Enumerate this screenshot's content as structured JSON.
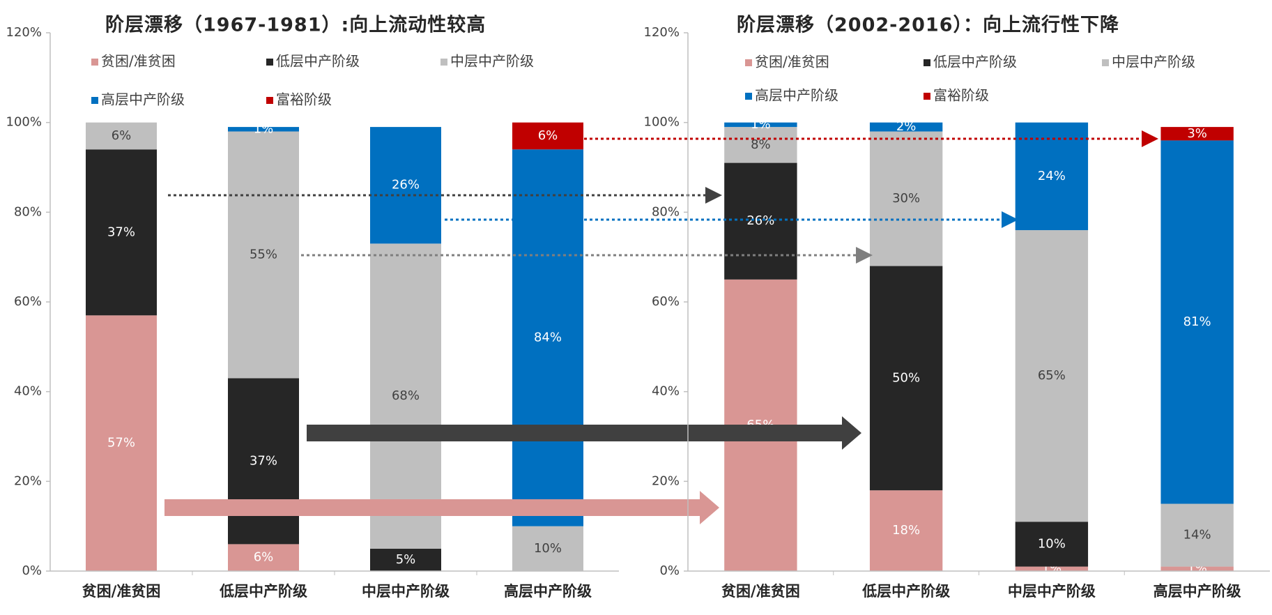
{
  "chart_data": [
    {
      "type": "stacked_bar",
      "title": "阶层漂移（1967-1981）:向上流动性较高",
      "categories": [
        "贫困/准贫困",
        "低层中产阶级",
        "中层中产阶级",
        "高层中产阶级"
      ],
      "series": [
        {
          "name": "贫困/准贫困",
          "color": "#d99694",
          "values": [
            57,
            6,
            null,
            null
          ],
          "value_labels": [
            "57%",
            "6%",
            null,
            null
          ]
        },
        {
          "name": "低层中产阶级",
          "color": "#262626",
          "values": [
            37,
            37,
            5,
            null
          ],
          "value_labels": [
            "37%",
            "37%",
            "5%",
            null
          ]
        },
        {
          "name": "中层中产阶级",
          "color": "#bfbfbf",
          "values": [
            6,
            55,
            68,
            10
          ],
          "value_labels": [
            "6%",
            "55%",
            "68%",
            "10%"
          ]
        },
        {
          "name": "高层中产阶级",
          "color": "#0070c0",
          "values": [
            null,
            1,
            26,
            84
          ],
          "value_labels": [
            null,
            "1%",
            "26%",
            "84%"
          ]
        },
        {
          "name": "富裕阶级",
          "color": "#c00000",
          "values": [
            null,
            null,
            null,
            6
          ],
          "value_labels": [
            null,
            null,
            null,
            "6%"
          ]
        }
      ],
      "ylim": [
        0,
        120
      ],
      "yticks": [
        {
          "value": 0,
          "label": "0%"
        },
        {
          "value": 20,
          "label": "20%"
        },
        {
          "value": 40,
          "label": "40%"
        },
        {
          "value": 60,
          "label": "60%"
        },
        {
          "value": 80,
          "label": "80%"
        },
        {
          "value": 100,
          "label": "100%"
        },
        {
          "value": 120,
          "label": "120%"
        }
      ],
      "grid": false,
      "legend": "top"
    },
    {
      "type": "stacked_bar",
      "title": "阶层漂移（2002-2016）：向上流行性下降",
      "categories": [
        "贫困/准贫困",
        "低层中产阶级",
        "中层中产阶级",
        "高层中产阶级"
      ],
      "series": [
        {
          "name": "贫困/准贫困",
          "color": "#d99694",
          "values": [
            65,
            18,
            1,
            1
          ],
          "value_labels": [
            "65%",
            "18%",
            "1%",
            "1%"
          ]
        },
        {
          "name": "低层中产阶级",
          "color": "#262626",
          "values": [
            26,
            50,
            10,
            null
          ],
          "value_labels": [
            "26%",
            "50%",
            "10%",
            null
          ]
        },
        {
          "name": "中层中产阶级",
          "color": "#bfbfbf",
          "values": [
            8,
            30,
            65,
            14
          ],
          "value_labels": [
            "8%",
            "30%",
            "65%",
            "14%"
          ]
        },
        {
          "name": "高层中产阶级",
          "color": "#0070c0",
          "values": [
            1,
            2,
            24,
            81
          ],
          "value_labels": [
            "1%",
            "2%",
            "24%",
            "81%"
          ]
        },
        {
          "name": "富裕阶级",
          "color": "#c00000",
          "values": [
            null,
            null,
            null,
            3
          ],
          "value_labels": [
            null,
            null,
            null,
            "3%"
          ]
        }
      ],
      "ylim": [
        0,
        120
      ],
      "yticks": [
        {
          "value": 0,
          "label": "0%"
        },
        {
          "value": 20,
          "label": "20%"
        },
        {
          "value": 40,
          "label": "40%"
        },
        {
          "value": 60,
          "label": "60%"
        },
        {
          "value": 80,
          "label": "80%"
        },
        {
          "value": 100,
          "label": "100%"
        },
        {
          "value": 120,
          "label": "120%"
        }
      ],
      "grid": false,
      "legend": "top"
    }
  ]
}
